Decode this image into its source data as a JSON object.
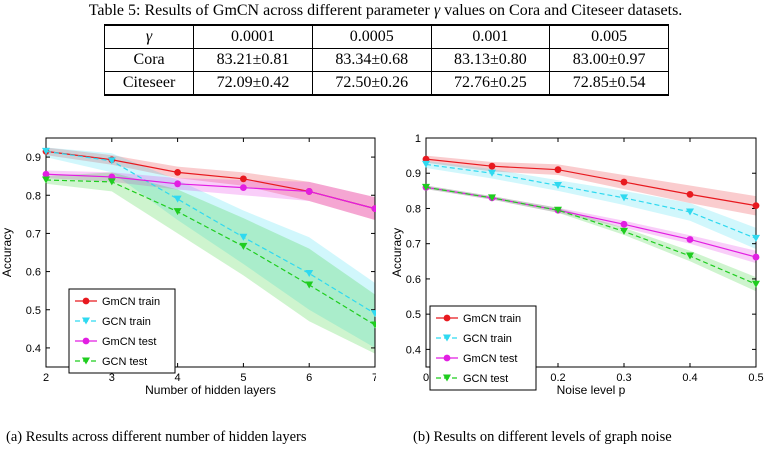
{
  "table": {
    "caption_prefix": "Table 5: Results of GmCN across different parameter",
    "caption_symbol": "γ",
    "caption_suffix": "values on Cora and Citeseer datasets.",
    "header": [
      "γ",
      "0.0001",
      "0.0005",
      "0.001",
      "0.005"
    ],
    "rows": [
      [
        "Cora",
        "83.21±0.81",
        "83.34±0.68",
        "83.13±0.80",
        "83.00±0.97"
      ],
      [
        "Citeseer",
        "72.09±0.42",
        "72.50±0.26",
        "72.76±0.25",
        "72.85±0.54"
      ]
    ]
  },
  "colors": {
    "gmcn_train": "#e8191f",
    "gcn_train": "#2fd9f0",
    "gmcn_test": "#e21ee2",
    "gcn_test": "#1fcd1f"
  },
  "chart_data": [
    {
      "type": "line",
      "subcaption": "(a) Results across different number of hidden layers",
      "xlabel": "Number of hidden layers",
      "ylabel": "Accuracy",
      "xlim": [
        2,
        7
      ],
      "ylim": [
        0.35,
        0.95
      ],
      "xticks": [
        "2",
        "3",
        "4",
        "5",
        "6",
        "7"
      ],
      "yticks": [
        "0.4",
        "0.5",
        "0.6",
        "0.7",
        "0.8",
        "0.9"
      ],
      "legend_position": "bottom-left",
      "x": [
        2,
        3,
        4,
        5,
        6,
        7
      ],
      "series": [
        {
          "name": "GmCN train",
          "key": "gmcn_train",
          "marker": "circle",
          "dash": false,
          "values": [
            0.915,
            0.893,
            0.86,
            0.843,
            0.81,
            0.765
          ],
          "lower": [
            0.905,
            0.88,
            0.845,
            0.825,
            0.785,
            0.735
          ],
          "upper": [
            0.925,
            0.905,
            0.875,
            0.86,
            0.835,
            0.795
          ]
        },
        {
          "name": "GCN train",
          "key": "gcn_train",
          "marker": "triangle",
          "dash": true,
          "values": [
            0.915,
            0.89,
            0.79,
            0.69,
            0.595,
            0.49
          ],
          "lower": [
            0.9,
            0.86,
            0.735,
            0.62,
            0.5,
            0.4
          ],
          "upper": [
            0.925,
            0.91,
            0.84,
            0.76,
            0.69,
            0.57
          ]
        },
        {
          "name": "GmCN test",
          "key": "gmcn_test",
          "marker": "circle",
          "dash": false,
          "values": [
            0.855,
            0.848,
            0.83,
            0.82,
            0.81,
            0.765
          ],
          "lower": [
            0.845,
            0.835,
            0.815,
            0.8,
            0.785,
            0.735
          ],
          "upper": [
            0.865,
            0.86,
            0.845,
            0.84,
            0.835,
            0.795
          ]
        },
        {
          "name": "GCN test",
          "key": "gcn_test",
          "marker": "triangle",
          "dash": true,
          "values": [
            0.84,
            0.835,
            0.757,
            0.666,
            0.565,
            0.46
          ],
          "lower": [
            0.83,
            0.81,
            0.7,
            0.59,
            0.47,
            0.385
          ],
          "upper": [
            0.85,
            0.86,
            0.815,
            0.74,
            0.66,
            0.54
          ]
        }
      ]
    },
    {
      "type": "line",
      "subcaption": "(b) Results on different levels of graph noise",
      "xlabel": "Noise level p",
      "ylabel": "Accuracy",
      "xlim": [
        0,
        0.5
      ],
      "ylim": [
        0.35,
        1.0
      ],
      "xticks": [
        "0",
        "0.1",
        "0.2",
        "0.3",
        "0.4",
        "0.5"
      ],
      "yticks": [
        "0.4",
        "0.5",
        "0.6",
        "0.7",
        "0.8",
        "0.9",
        "1"
      ],
      "legend_position": "bottom-left",
      "x": [
        0,
        0.1,
        0.2,
        0.3,
        0.4,
        0.5
      ],
      "series": [
        {
          "name": "GmCN train",
          "key": "gmcn_train",
          "marker": "circle",
          "dash": false,
          "values": [
            0.94,
            0.92,
            0.91,
            0.875,
            0.84,
            0.808
          ],
          "lower": [
            0.93,
            0.905,
            0.895,
            0.855,
            0.815,
            0.78
          ],
          "upper": [
            0.95,
            0.932,
            0.925,
            0.895,
            0.865,
            0.835
          ]
        },
        {
          "name": "GCN train",
          "key": "gcn_train",
          "marker": "triangle",
          "dash": true,
          "values": [
            0.925,
            0.9,
            0.865,
            0.83,
            0.79,
            0.715
          ],
          "lower": [
            0.915,
            0.885,
            0.85,
            0.81,
            0.765,
            0.685
          ],
          "upper": [
            0.935,
            0.912,
            0.88,
            0.85,
            0.815,
            0.745
          ]
        },
        {
          "name": "GmCN test",
          "key": "gmcn_test",
          "marker": "circle",
          "dash": false,
          "values": [
            0.86,
            0.83,
            0.795,
            0.755,
            0.712,
            0.662
          ],
          "lower": [
            0.855,
            0.825,
            0.788,
            0.745,
            0.7,
            0.645
          ],
          "upper": [
            0.865,
            0.835,
            0.802,
            0.765,
            0.724,
            0.68
          ]
        },
        {
          "name": "GCN test",
          "key": "gcn_test",
          "marker": "triangle",
          "dash": true,
          "values": [
            0.86,
            0.83,
            0.795,
            0.735,
            0.665,
            0.585
          ],
          "lower": [
            0.855,
            0.825,
            0.788,
            0.725,
            0.65,
            0.565
          ],
          "upper": [
            0.865,
            0.835,
            0.802,
            0.745,
            0.68,
            0.605
          ]
        }
      ]
    }
  ]
}
